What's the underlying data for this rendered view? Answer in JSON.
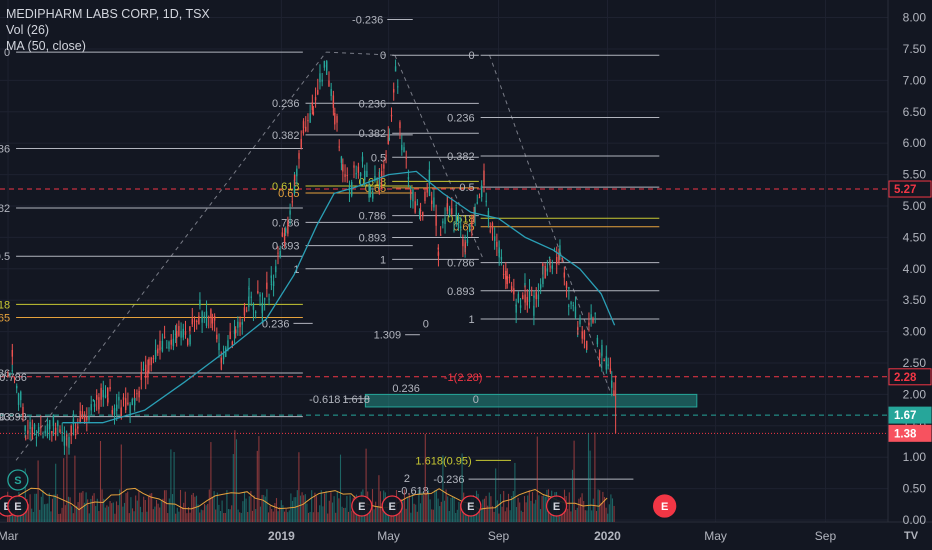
{
  "legend": {
    "title": "MEDIPHARM LABS CORP, 1D, TSX",
    "volume": "Vol (26)",
    "ma": "MA (50, close)"
  },
  "colors": {
    "background": "#131722",
    "candle_up": "#26a69a",
    "candle_down": "#ef5350",
    "ma_line": "#2a9fb5",
    "fib_gray": "#b2b5be",
    "fib_yellow": "#c8c832",
    "fib_orange": "#e6a23c",
    "red_dash": "#f23645",
    "earnings": "#f23645",
    "split": "#26a69a"
  },
  "chart_data": {
    "type": "candlestick",
    "y_axis": {
      "ticks": [
        "8.00",
        "7.50",
        "7.00",
        "6.50",
        "6.00",
        "5.50",
        "5.00",
        "4.50",
        "4.00",
        "3.50",
        "3.00",
        "2.50",
        "2.00",
        "1.50",
        "1.00",
        "0.50",
        "0.00"
      ],
      "range": [
        0,
        8.2
      ]
    },
    "x_axis": {
      "ticks": [
        "Mar",
        "2019",
        "May",
        "Sep",
        "2020",
        "May",
        "Sep"
      ],
      "ticks_bold": [
        "2019",
        "2020"
      ],
      "range": [
        "2018-02-20",
        "2020-11-10"
      ]
    },
    "price_tags": [
      {
        "value": 5.27,
        "label": "5.27",
        "style": "red"
      },
      {
        "value": 2.28,
        "label": "2.28",
        "style": "red"
      },
      {
        "value": 1.67,
        "label": "1.67",
        "style": "teal"
      },
      {
        "value": 1.38,
        "label": "1.38",
        "style": "redfill"
      }
    ],
    "red_dashed_levels": [
      5.27,
      2.28
    ],
    "teal_dashed_level": 1.67,
    "red_dotted_level": 1.38,
    "price_path": [
      [
        "2018-02-28",
        2.3
      ],
      [
        "2018-03-05",
        2.5
      ],
      [
        "2018-03-12",
        2.0
      ],
      [
        "2018-03-20",
        1.45
      ],
      [
        "2018-04-01",
        1.4
      ],
      [
        "2018-04-20",
        1.45
      ],
      [
        "2018-05-05",
        1.3
      ],
      [
        "2018-05-20",
        1.55
      ],
      [
        "2018-06-05",
        1.85
      ],
      [
        "2018-06-20",
        1.95
      ],
      [
        "2018-07-05",
        1.8
      ],
      [
        "2018-07-20",
        1.95
      ],
      [
        "2018-08-05",
        2.5
      ],
      [
        "2018-08-20",
        2.8
      ],
      [
        "2018-09-05",
        2.9
      ],
      [
        "2018-09-20",
        3.0
      ],
      [
        "2018-10-01",
        3.3
      ],
      [
        "2018-10-15",
        3.2
      ],
      [
        "2018-10-25",
        2.6
      ],
      [
        "2018-11-10",
        2.95
      ],
      [
        "2018-11-25",
        3.5
      ],
      [
        "2018-12-10",
        3.35
      ],
      [
        "2018-12-20",
        3.85
      ],
      [
        "2019-01-05",
        4.5
      ],
      [
        "2019-01-15",
        5.3
      ],
      [
        "2019-01-25",
        6.2
      ],
      [
        "2019-02-05",
        6.6
      ],
      [
        "2019-02-20",
        7.3
      ],
      [
        "2019-03-01",
        6.5
      ],
      [
        "2019-03-10",
        5.5
      ],
      [
        "2019-03-20",
        5.4
      ],
      [
        "2019-04-01",
        5.7
      ],
      [
        "2019-04-10",
        5.2
      ],
      [
        "2019-04-20",
        5.5
      ],
      [
        "2019-05-01",
        6.0
      ],
      [
        "2019-05-08",
        7.2
      ],
      [
        "2019-05-15",
        6.0
      ],
      [
        "2019-05-25",
        5.3
      ],
      [
        "2019-06-05",
        4.8
      ],
      [
        "2019-06-15",
        5.4
      ],
      [
        "2019-06-25",
        4.4
      ],
      [
        "2019-07-05",
        5.0
      ],
      [
        "2019-07-15",
        4.8
      ],
      [
        "2019-07-25",
        4.3
      ],
      [
        "2019-08-05",
        4.9
      ],
      [
        "2019-08-15",
        5.5
      ],
      [
        "2019-08-22",
        4.7
      ],
      [
        "2019-09-01",
        4.3
      ],
      [
        "2019-09-10",
        3.9
      ],
      [
        "2019-09-20",
        3.4
      ],
      [
        "2019-09-30",
        3.6
      ],
      [
        "2019-10-10",
        3.4
      ],
      [
        "2019-10-20",
        3.9
      ],
      [
        "2019-10-28",
        4.1
      ],
      [
        "2019-11-08",
        4.2
      ],
      [
        "2019-11-18",
        3.6
      ],
      [
        "2019-11-28",
        3.1
      ],
      [
        "2019-12-08",
        2.9
      ],
      [
        "2019-12-15",
        3.2
      ],
      [
        "2019-12-25",
        2.6
      ],
      [
        "2020-01-01",
        2.45
      ],
      [
        "2020-01-05",
        2.3
      ],
      [
        "2020-01-09",
        1.67
      ]
    ],
    "ma_path": [
      [
        "2018-05-01",
        1.55
      ],
      [
        "2018-06-15",
        1.55
      ],
      [
        "2018-08-01",
        1.75
      ],
      [
        "2018-09-15",
        2.2
      ],
      [
        "2018-11-01",
        2.7
      ],
      [
        "2018-12-15",
        3.2
      ],
      [
        "2019-01-15",
        3.9
      ],
      [
        "2019-02-10",
        4.7
      ],
      [
        "2019-03-01",
        5.2
      ],
      [
        "2019-03-25",
        5.3
      ],
      [
        "2019-05-01",
        5.5
      ],
      [
        "2019-06-01",
        5.55
      ],
      [
        "2019-07-01",
        5.2
      ],
      [
        "2019-08-01",
        4.9
      ],
      [
        "2019-09-01",
        4.8
      ],
      [
        "2019-10-01",
        4.5
      ],
      [
        "2019-11-01",
        4.3
      ],
      [
        "2019-12-01",
        4.0
      ],
      [
        "2019-12-25",
        3.6
      ],
      [
        "2020-01-09",
        3.1
      ]
    ],
    "volume_bars_seed": 17,
    "fib_sets": [
      {
        "x0": "2018-03-10",
        "x1": "2019-01-25",
        "top": 7.45,
        "bottom": 0.95,
        "levels": [
          [
            "0",
            "#b2b5be"
          ],
          [
            "0.236",
            "#b2b5be"
          ],
          [
            "0.382",
            "#b2b5be"
          ],
          [
            "0.5",
            "#b2b5be"
          ],
          [
            "0.618",
            "#c8c832"
          ],
          [
            "0.65",
            "#e6a23c"
          ],
          [
            "0.786",
            "#b2b5be"
          ],
          [
            "0.893",
            "#b2b5be"
          ]
        ],
        "label_side": "left"
      },
      {
        "x0": "2019-01-28",
        "x1": "2019-05-28",
        "top": 7.45,
        "bottom": 4.0,
        "levels": [
          [
            "1",
            "#b2b5be"
          ],
          [
            "0.893",
            "#b2b5be"
          ],
          [
            "0.786",
            "#b2b5be"
          ],
          [
            "0.65",
            "#e6a23c"
          ],
          [
            "0.618",
            "#c8c832"
          ],
          [
            "0.382",
            "#b2b5be"
          ],
          [
            "0.236",
            "#b2b5be"
          ]
        ],
        "label_side": "left"
      },
      {
        "x0": "2019-05-05",
        "x1": "2019-08-10",
        "top": 7.4,
        "bottom": 4.15,
        "levels": [
          [
            "0",
            "#b2b5be"
          ],
          [
            "0.893",
            "#b2b5be"
          ],
          [
            "0.786",
            "#b2b5be"
          ],
          [
            "0.65",
            "#e6a23c"
          ],
          [
            "0.618",
            "#c8c832"
          ],
          [
            "0.5",
            "#b2b5be"
          ],
          [
            "0.382",
            "#b2b5be"
          ],
          [
            "0.236",
            "#b2b5be"
          ],
          [
            "1",
            "#b2b5be"
          ]
        ],
        "label_side": "left"
      },
      {
        "x0": "2019-08-12",
        "x1": "2020-02-28",
        "top": 7.4,
        "bottom": 3.2,
        "levels": [
          [
            "1",
            "#b2b5be"
          ],
          [
            "0.893",
            "#b2b5be"
          ],
          [
            "0.786",
            "#b2b5be"
          ],
          [
            "0.65",
            "#e6a23c"
          ],
          [
            "0.618",
            "#c8c832"
          ],
          [
            "0.5",
            "#b2b5be"
          ],
          [
            "0.382",
            "#b2b5be"
          ],
          [
            "0.236",
            "#b2b5be"
          ],
          [
            "0",
            "#b2b5be"
          ]
        ],
        "label_side": "left"
      }
    ],
    "extra_fib_labels": [
      {
        "text": "-0.236",
        "x": "2019-04-25",
        "y": 7.97,
        "color": "#b2b5be",
        "line_to": "2019-05-28"
      },
      {
        "text": "0.236",
        "x": "2019-01-10",
        "y": 3.13,
        "color": "#b2b5be",
        "line_to": "2019-02-05"
      },
      {
        "text": "1.309",
        "x": "2019-05-15",
        "y": 2.95,
        "color": "#b2b5be",
        "line_to": "2019-06-05"
      },
      {
        "text": "0",
        "x": "2019-06-15",
        "y": 3.13,
        "color": "#b2b5be"
      },
      {
        "text": "-0.618",
        "x": "2019-03-08",
        "y": 1.93,
        "color": "#b2b5be",
        "line_to": "2019-04-10"
      },
      {
        "text": "1.618",
        "x": "2019-04-10",
        "y": 1.93,
        "color": "#b2b5be"
      },
      {
        "text": "0.236",
        "x": "2019-06-05",
        "y": 2.1,
        "color": "#b2b5be"
      },
      {
        "text": "0",
        "x": "2019-08-10",
        "y": 1.93,
        "color": "#b2b5be"
      },
      {
        "text": "-1(2.28)",
        "x": "2019-08-14",
        "y": 2.28,
        "color": "#f23645"
      },
      {
        "text": "0.893",
        "x": "2018-03-22",
        "y": 1.65,
        "color": "#b2b5be"
      },
      {
        "text": "0.786",
        "x": "2018-03-22",
        "y": 2.28,
        "color": "#b2b5be"
      },
      {
        "text": "1.618(0.95)",
        "x": "2019-08-02",
        "y": 0.95,
        "color": "#c8c832",
        "line_to": "2019-09-15"
      },
      {
        "text": "-0.236",
        "x": "2019-07-25",
        "y": 0.65,
        "color": "#b2b5be",
        "line_to": "2020-01-30"
      },
      {
        "text": "-0.618",
        "x": "2019-06-15",
        "y": 0.47,
        "color": "#b2b5be"
      },
      {
        "text": "2",
        "x": "2019-05-25",
        "y": 0.67,
        "color": "#b2b5be"
      }
    ],
    "teal_zone": {
      "x0": "2019-04-05",
      "x1": "2020-04-10",
      "y0": 1.8,
      "y1": 2.0
    },
    "trend_lines": [
      [
        [
          "2018-03-10",
          0.95
        ],
        [
          "2019-02-20",
          7.45
        ]
      ],
      [
        [
          "2019-02-20",
          7.45
        ],
        [
          "2019-05-08",
          7.4
        ]
      ],
      [
        [
          "2019-05-08",
          7.4
        ],
        [
          "2019-08-15",
          4.15
        ]
      ],
      [
        [
          "2019-08-22",
          7.4
        ],
        [
          "2020-01-05",
          2.0
        ]
      ]
    ],
    "events": [
      {
        "date": "2018-02-28",
        "label": "E"
      },
      {
        "date": "2018-03-12",
        "label": "E"
      },
      {
        "date": "2018-03-12",
        "label": "S",
        "row": "upper"
      },
      {
        "date": "2019-04-01",
        "label": "E"
      },
      {
        "date": "2019-05-05",
        "label": "E"
      },
      {
        "date": "2019-08-01",
        "label": "E"
      },
      {
        "date": "2019-11-05",
        "label": "E"
      },
      {
        "date": "2020-03-05",
        "label": "E",
        "highlight": true
      }
    ]
  }
}
